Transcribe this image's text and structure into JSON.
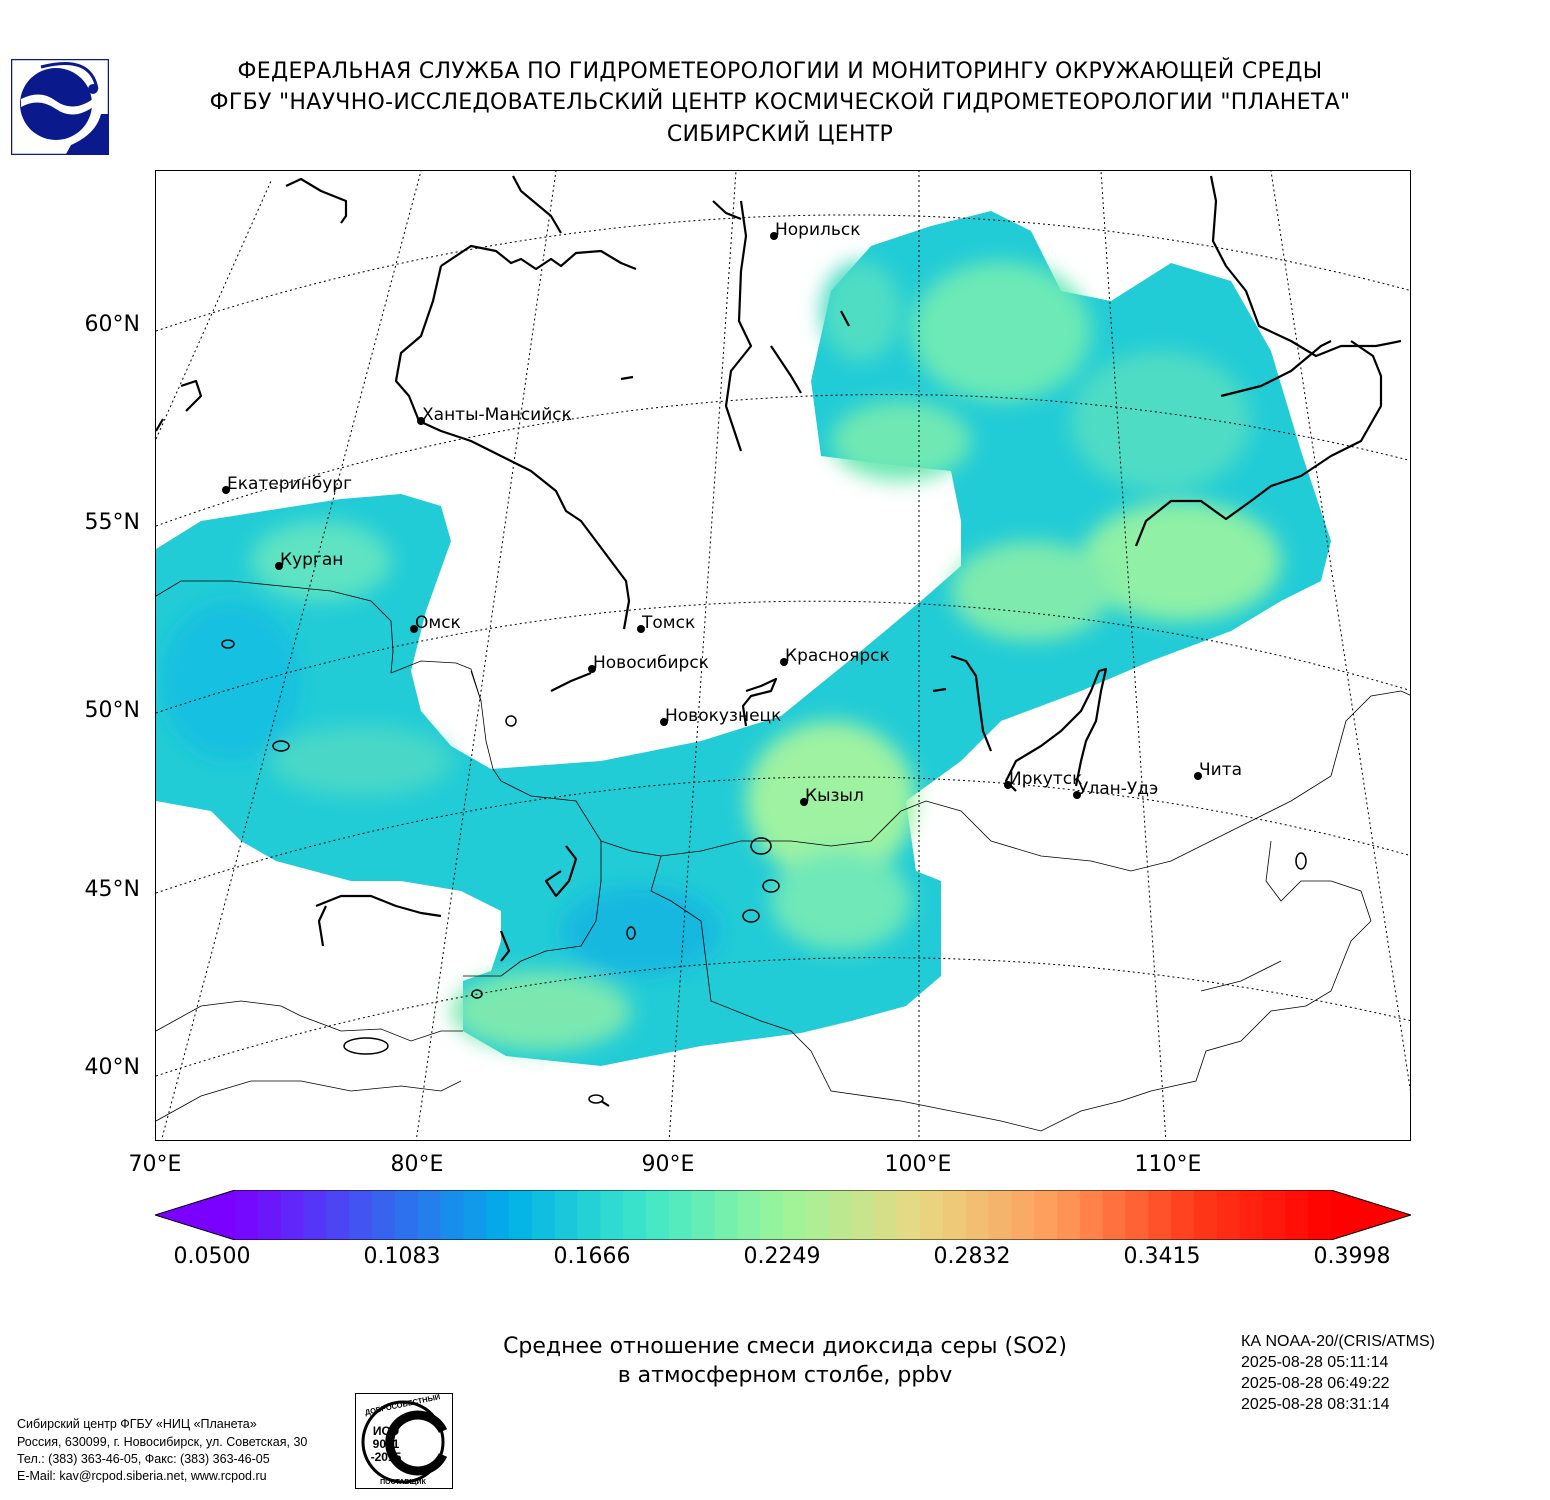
{
  "header": {
    "line1": "ФЕДЕРАЛЬНАЯ СЛУЖБА ПО ГИДРОМЕТЕОРОЛОГИИ И МОНИТОРИНГУ ОКРУЖАЮЩЕЙ СРЕДЫ",
    "line2": "ФГБУ \"НАУЧНО-ИССЛЕДОВАТЕЛЬСКИЙ ЦЕНТР КОСМИЧЕСКОЙ ГИДРОМЕТЕОРОЛОГИИ \"ПЛАНЕТА\"",
    "line3": "СИБИРСКИЙ ЦЕНТР"
  },
  "map": {
    "lat_labels": [
      "60°N",
      "55°N",
      "50°N",
      "45°N",
      "40°N"
    ],
    "lon_labels": [
      "70°E",
      "80°E",
      "90°E",
      "100°E",
      "110°E"
    ],
    "cities": [
      {
        "name": "Норильск"
      },
      {
        "name": "Ханты-Мансийск"
      },
      {
        "name": "Екатеринбург"
      },
      {
        "name": "Курган"
      },
      {
        "name": "Омск"
      },
      {
        "name": "Томск"
      },
      {
        "name": "Новосибирск"
      },
      {
        "name": "Красноярск"
      },
      {
        "name": "Новокузнецк"
      },
      {
        "name": "Кызыл"
      },
      {
        "name": "Иркутск"
      },
      {
        "name": "Улан-Удэ"
      },
      {
        "name": "Чита"
      }
    ]
  },
  "colorbar": {
    "labels": [
      "0.0500",
      "0.1083",
      "0.1666",
      "0.2249",
      "0.2832",
      "0.3415",
      "0.3998"
    ],
    "min": 0.05,
    "max": 0.3998,
    "colors": [
      "#7a00ff",
      "#3d5cf0",
      "#00b0e8",
      "#3ee8c8",
      "#9cf59a",
      "#e8d882",
      "#ff9a5a",
      "#ff3a1a",
      "#ff0000"
    ]
  },
  "caption": {
    "line1": "Среднее отношение смеси диоксида серы (SO2)",
    "line2": "в атмосферном столбе, ppbv"
  },
  "satellite": {
    "name": "КА NOAA-20/(CRIS/ATMS)",
    "times": [
      "2025-08-28 05:11:14",
      "2025-08-28 06:49:22",
      "2025-08-28 08:31:14"
    ]
  },
  "footer": {
    "line1": "Сибирский центр ФГБУ «НИЦ «Планета»",
    "line2": "Россия, 630099, г. Новосибирск, ул. Советская, 30",
    "line3": "Тел.: (383) 363-46-05, Факс: (383) 363-46-05",
    "line4": "E-Mail: kav@rcpod.siberia.net, www.rcpod.ru"
  },
  "iso_stamp": {
    "top": "ДОБРОСОВЕСТНЫЙ",
    "l1": "ИСО",
    "l2": "9001",
    "l3": "-2015",
    "bottom": "ПОСТАВЩИК"
  }
}
